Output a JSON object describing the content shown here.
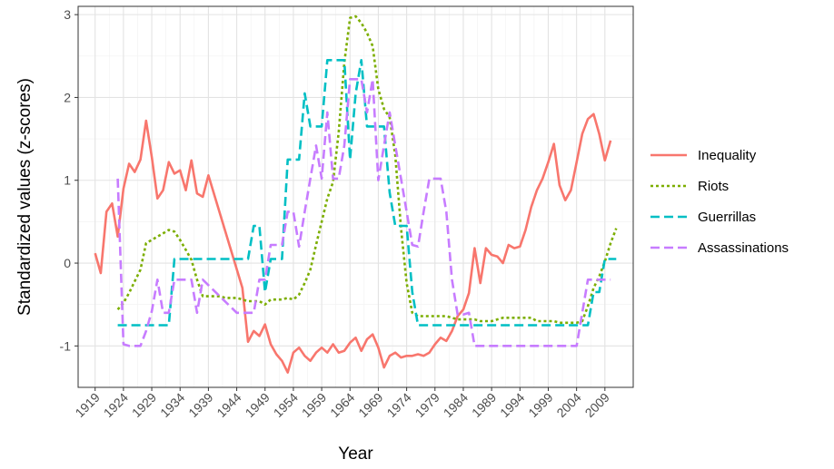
{
  "chart_data": {
    "type": "line",
    "xlabel": "Year",
    "ylabel": "Standardized values (z-scores)",
    "xlim": [
      1916,
      2014
    ],
    "ylim": [
      -1.5,
      3.1
    ],
    "x_ticks": [
      1919,
      1924,
      1929,
      1934,
      1939,
      1944,
      1949,
      1954,
      1959,
      1964,
      1969,
      1974,
      1979,
      1984,
      1989,
      1994,
      1999,
      2004,
      2009
    ],
    "y_ticks": [
      -1,
      0,
      1,
      2,
      3
    ],
    "grid": true,
    "legend_position": "right",
    "series": [
      {
        "name": "Inequality",
        "color": "#F8766D",
        "dash": "solid",
        "points": [
          [
            1919,
            0.12
          ],
          [
            1920,
            -0.12
          ],
          [
            1921,
            0.62
          ],
          [
            1922,
            0.72
          ],
          [
            1923,
            0.32
          ],
          [
            1924,
            0.9
          ],
          [
            1925,
            1.2
          ],
          [
            1926,
            1.1
          ],
          [
            1927,
            1.25
          ],
          [
            1928,
            1.72
          ],
          [
            1929,
            1.28
          ],
          [
            1930,
            0.78
          ],
          [
            1931,
            0.88
          ],
          [
            1932,
            1.22
          ],
          [
            1933,
            1.08
          ],
          [
            1934,
            1.12
          ],
          [
            1935,
            0.88
          ],
          [
            1936,
            1.24
          ],
          [
            1937,
            0.84
          ],
          [
            1938,
            0.8
          ],
          [
            1939,
            1.06
          ],
          [
            1945,
            -0.3
          ],
          [
            1946,
            -0.95
          ],
          [
            1947,
            -0.82
          ],
          [
            1948,
            -0.88
          ],
          [
            1949,
            -0.74
          ],
          [
            1950,
            -0.98
          ],
          [
            1951,
            -1.1
          ],
          [
            1952,
            -1.18
          ],
          [
            1953,
            -1.32
          ],
          [
            1954,
            -1.08
          ],
          [
            1955,
            -1.02
          ],
          [
            1956,
            -1.12
          ],
          [
            1957,
            -1.18
          ],
          [
            1958,
            -1.08
          ],
          [
            1959,
            -1.02
          ],
          [
            1960,
            -1.08
          ],
          [
            1961,
            -0.98
          ],
          [
            1962,
            -1.08
          ],
          [
            1963,
            -1.06
          ],
          [
            1964,
            -0.96
          ],
          [
            1965,
            -0.9
          ],
          [
            1966,
            -1.06
          ],
          [
            1967,
            -0.92
          ],
          [
            1968,
            -0.86
          ],
          [
            1969,
            -1.02
          ],
          [
            1970,
            -1.26
          ],
          [
            1971,
            -1.12
          ],
          [
            1972,
            -1.08
          ],
          [
            1973,
            -1.14
          ],
          [
            1974,
            -1.12
          ],
          [
            1975,
            -1.12
          ],
          [
            1976,
            -1.1
          ],
          [
            1977,
            -1.12
          ],
          [
            1978,
            -1.08
          ],
          [
            1979,
            -0.98
          ],
          [
            1980,
            -0.9
          ],
          [
            1981,
            -0.94
          ],
          [
            1982,
            -0.82
          ],
          [
            1983,
            -0.64
          ],
          [
            1984,
            -0.56
          ],
          [
            1985,
            -0.36
          ],
          [
            1986,
            0.18
          ],
          [
            1987,
            -0.24
          ],
          [
            1988,
            0.18
          ],
          [
            1989,
            0.1
          ],
          [
            1990,
            0.08
          ],
          [
            1991,
            0.0
          ],
          [
            1992,
            0.22
          ],
          [
            1993,
            0.18
          ],
          [
            1994,
            0.2
          ],
          [
            1995,
            0.4
          ],
          [
            1996,
            0.68
          ],
          [
            1997,
            0.88
          ],
          [
            1998,
            1.02
          ],
          [
            1999,
            1.22
          ],
          [
            2000,
            1.44
          ],
          [
            2001,
            0.94
          ],
          [
            2002,
            0.76
          ],
          [
            2003,
            0.88
          ],
          [
            2004,
            1.22
          ],
          [
            2005,
            1.56
          ],
          [
            2006,
            1.74
          ],
          [
            2007,
            1.8
          ],
          [
            2008,
            1.56
          ],
          [
            2009,
            1.24
          ],
          [
            2010,
            1.48
          ]
        ]
      },
      {
        "name": "Riots",
        "color": "#7CAE00",
        "dash": "dotted",
        "points": [
          [
            1923,
            -0.56
          ],
          [
            1924,
            -0.48
          ],
          [
            1925,
            -0.36
          ],
          [
            1926,
            -0.22
          ],
          [
            1927,
            -0.08
          ],
          [
            1928,
            0.24
          ],
          [
            1929,
            0.28
          ],
          [
            1930,
            0.32
          ],
          [
            1931,
            0.36
          ],
          [
            1932,
            0.4
          ],
          [
            1933,
            0.38
          ],
          [
            1934,
            0.28
          ],
          [
            1935,
            0.16
          ],
          [
            1936,
            0.04
          ],
          [
            1937,
            -0.2
          ],
          [
            1938,
            -0.4
          ],
          [
            1939,
            -0.4
          ],
          [
            1940,
            -0.4
          ],
          [
            1941,
            -0.4
          ],
          [
            1942,
            -0.42
          ],
          [
            1943,
            -0.42
          ],
          [
            1944,
            -0.42
          ],
          [
            1945,
            -0.44
          ],
          [
            1946,
            -0.46
          ],
          [
            1947,
            -0.46
          ],
          [
            1948,
            -0.46
          ],
          [
            1949,
            -0.5
          ],
          [
            1950,
            -0.44
          ],
          [
            1951,
            -0.44
          ],
          [
            1952,
            -0.44
          ],
          [
            1953,
            -0.42
          ],
          [
            1954,
            -0.44
          ],
          [
            1955,
            -0.38
          ],
          [
            1956,
            -0.24
          ],
          [
            1957,
            -0.08
          ],
          [
            1958,
            0.22
          ],
          [
            1959,
            0.5
          ],
          [
            1960,
            0.78
          ],
          [
            1961,
            0.98
          ],
          [
            1962,
            1.58
          ],
          [
            1963,
            2.42
          ],
          [
            1964,
            2.96
          ],
          [
            1965,
            2.98
          ],
          [
            1966,
            2.9
          ],
          [
            1967,
            2.78
          ],
          [
            1968,
            2.62
          ],
          [
            1969,
            2.1
          ],
          [
            1970,
            1.86
          ],
          [
            1971,
            1.76
          ],
          [
            1972,
            1.3
          ],
          [
            1973,
            0.42
          ],
          [
            1974,
            -0.24
          ],
          [
            1975,
            -0.6
          ],
          [
            1976,
            -0.64
          ],
          [
            1977,
            -0.64
          ],
          [
            1978,
            -0.64
          ],
          [
            1979,
            -0.64
          ],
          [
            1980,
            -0.64
          ],
          [
            1981,
            -0.64
          ],
          [
            1982,
            -0.66
          ],
          [
            1983,
            -0.68
          ],
          [
            1984,
            -0.68
          ],
          [
            1985,
            -0.68
          ],
          [
            1986,
            -0.68
          ],
          [
            1987,
            -0.7
          ],
          [
            1988,
            -0.7
          ],
          [
            1989,
            -0.7
          ],
          [
            1990,
            -0.68
          ],
          [
            1991,
            -0.66
          ],
          [
            1992,
            -0.66
          ],
          [
            1993,
            -0.66
          ],
          [
            1994,
            -0.66
          ],
          [
            1995,
            -0.66
          ],
          [
            1996,
            -0.66
          ],
          [
            1997,
            -0.7
          ],
          [
            1998,
            -0.7
          ],
          [
            1999,
            -0.7
          ],
          [
            2000,
            -0.7
          ],
          [
            2001,
            -0.72
          ],
          [
            2002,
            -0.72
          ],
          [
            2003,
            -0.72
          ],
          [
            2004,
            -0.72
          ],
          [
            2005,
            -0.7
          ],
          [
            2006,
            -0.52
          ],
          [
            2007,
            -0.3
          ],
          [
            2008,
            -0.16
          ],
          [
            2009,
            0.02
          ],
          [
            2010,
            0.24
          ],
          [
            2011,
            0.42
          ]
        ]
      },
      {
        "name": "Guerrillas",
        "color": "#00BFC4",
        "dash": "dashed",
        "points": [
          [
            1923,
            -0.75
          ],
          [
            1932,
            -0.75
          ],
          [
            1933,
            0.05
          ],
          [
            1946,
            0.05
          ],
          [
            1947,
            0.45
          ],
          [
            1948,
            0.45
          ],
          [
            1949,
            -0.35
          ],
          [
            1950,
            0.05
          ],
          [
            1951,
            0.05
          ],
          [
            1952,
            0.05
          ],
          [
            1953,
            1.25
          ],
          [
            1955,
            1.25
          ],
          [
            1956,
            2.05
          ],
          [
            1957,
            1.65
          ],
          [
            1959,
            1.65
          ],
          [
            1960,
            2.45
          ],
          [
            1963,
            2.45
          ],
          [
            1964,
            1.25
          ],
          [
            1965,
            2.05
          ],
          [
            1966,
            2.45
          ],
          [
            1967,
            1.65
          ],
          [
            1970,
            1.65
          ],
          [
            1971,
            0.85
          ],
          [
            1972,
            0.45
          ],
          [
            1974,
            0.45
          ],
          [
            1975,
            -0.35
          ],
          [
            1976,
            -0.75
          ],
          [
            2006,
            -0.75
          ],
          [
            2007,
            -0.35
          ],
          [
            2008,
            -0.35
          ],
          [
            2009,
            0.05
          ],
          [
            2011,
            0.05
          ]
        ]
      },
      {
        "name": "Assassinations",
        "color": "#C77CFF",
        "dash": "dashed",
        "points": [
          [
            1923,
            1.02
          ],
          [
            1924,
            -0.98
          ],
          [
            1925,
            -1.0
          ],
          [
            1927,
            -1.0
          ],
          [
            1928,
            -0.82
          ],
          [
            1929,
            -0.58
          ],
          [
            1930,
            -0.2
          ],
          [
            1931,
            -0.6
          ],
          [
            1932,
            -0.6
          ],
          [
            1933,
            -0.2
          ],
          [
            1936,
            -0.2
          ],
          [
            1937,
            -0.6
          ],
          [
            1938,
            -0.2
          ],
          [
            1944,
            -0.6
          ],
          [
            1947,
            -0.6
          ],
          [
            1948,
            -0.2
          ],
          [
            1949,
            -0.2
          ],
          [
            1950,
            0.22
          ],
          [
            1951,
            0.22
          ],
          [
            1952,
            0.22
          ],
          [
            1953,
            0.62
          ],
          [
            1954,
            0.62
          ],
          [
            1955,
            0.2
          ],
          [
            1956,
            0.62
          ],
          [
            1957,
            1.02
          ],
          [
            1958,
            1.42
          ],
          [
            1959,
            1.02
          ],
          [
            1960,
            1.82
          ],
          [
            1961,
            1.02
          ],
          [
            1962,
            1.02
          ],
          [
            1963,
            1.42
          ],
          [
            1964,
            2.22
          ],
          [
            1966,
            2.22
          ],
          [
            1967,
            1.82
          ],
          [
            1968,
            2.22
          ],
          [
            1969,
            1.0
          ],
          [
            1970,
            1.42
          ],
          [
            1971,
            1.82
          ],
          [
            1972,
            1.42
          ],
          [
            1973,
            1.02
          ],
          [
            1974,
            0.62
          ],
          [
            1975,
            0.22
          ],
          [
            1976,
            0.2
          ],
          [
            1977,
            0.62
          ],
          [
            1978,
            1.02
          ],
          [
            1980,
            1.02
          ],
          [
            1981,
            0.62
          ],
          [
            1982,
            -0.2
          ],
          [
            1983,
            -0.62
          ],
          [
            1984,
            -0.62
          ],
          [
            1985,
            -0.6
          ],
          [
            1986,
            -1.0
          ],
          [
            2004,
            -1.0
          ],
          [
            2005,
            -0.6
          ],
          [
            2006,
            -0.2
          ],
          [
            2010,
            -0.2
          ]
        ]
      }
    ]
  }
}
